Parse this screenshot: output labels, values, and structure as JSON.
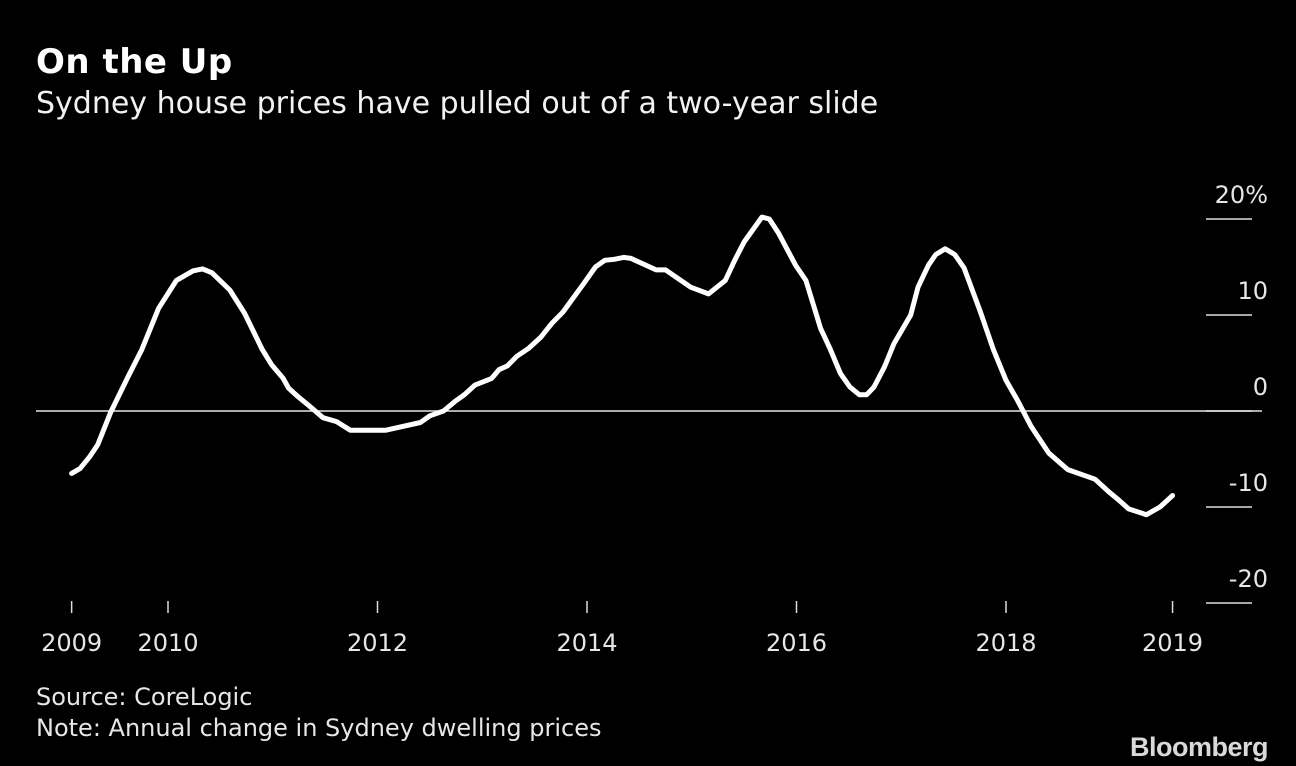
{
  "chart_data": {
    "type": "line",
    "title": "On the Up",
    "subtitle": "Sydney house prices have pulled out of a two-year slide",
    "source": "Source: CoreLogic",
    "note": "Note: Annual change in Sydney dwelling prices",
    "logo": "Bloomberg",
    "ylim": [
      -20,
      20
    ],
    "grid": false,
    "y_ticks": [
      {
        "value": 20,
        "label": "20%"
      },
      {
        "value": 10,
        "label": "10"
      },
      {
        "value": 0,
        "label": "0"
      },
      {
        "value": -10,
        "label": "-10"
      },
      {
        "value": -20,
        "label": "-20"
      }
    ],
    "x_ticks": [
      {
        "value": 2009.08,
        "label": "2009"
      },
      {
        "value": 2010,
        "label": "2010"
      },
      {
        "value": 2012,
        "label": "2012"
      },
      {
        "value": 2014,
        "label": "2014"
      },
      {
        "value": 2016,
        "label": "2016"
      },
      {
        "value": 2018,
        "label": "2018"
      },
      {
        "value": 2019.59,
        "label": "2019"
      }
    ],
    "zero_line": true,
    "line_color": "#ffffff",
    "x": [
      2009.08,
      2009.16,
      2009.25,
      2009.33,
      2009.45,
      2009.62,
      2009.75,
      2009.91,
      2010.08,
      2010.24,
      2010.33,
      2010.42,
      2010.59,
      2010.73,
      2010.9,
      2010.99,
      2011.1,
      2011.15,
      2011.24,
      2011.34,
      2011.48,
      2011.61,
      2011.74,
      2012.08,
      2012.41,
      2012.5,
      2012.63,
      2012.74,
      2012.83,
      2012.93,
      2013.09,
      2013.16,
      2013.24,
      2013.33,
      2013.44,
      2013.56,
      2013.67,
      2013.77,
      2013.97,
      2014.08,
      2014.17,
      2014.26,
      2014.35,
      2014.42,
      2014.66,
      2014.75,
      2014.99,
      2015.16,
      2015.32,
      2015.41,
      2015.5,
      2015.67,
      2015.74,
      2015.83,
      2015.99,
      2016.09,
      2016.23,
      2016.32,
      2016.42,
      2016.51,
      2016.6,
      2016.67,
      2016.74,
      2016.84,
      2016.93,
      2017.09,
      2017.16,
      2017.26,
      2017.33,
      2017.42,
      2017.51,
      2017.6,
      2017.75,
      2017.88,
      2018.0,
      2018.11,
      2018.24,
      2018.41,
      2018.59,
      2018.85,
      2018.99,
      2019.08,
      2019.17,
      2019.34,
      2019.47,
      2019.59
    ],
    "y": [
      -6.5,
      -6.0,
      -4.8,
      -3.5,
      -0.2,
      3.6,
      6.4,
      10.7,
      13.6,
      14.6,
      14.8,
      14.4,
      12.6,
      10.2,
      6.4,
      4.8,
      3.4,
      2.4,
      1.5,
      0.6,
      -0.7,
      -1.1,
      -2.0,
      -2.0,
      -1.2,
      -0.5,
      0.0,
      1.0,
      1.7,
      2.7,
      3.4,
      4.3,
      4.7,
      5.7,
      6.5,
      7.7,
      9.2,
      10.3,
      13.3,
      15.0,
      15.7,
      15.8,
      16.0,
      15.9,
      14.7,
      14.7,
      12.9,
      12.2,
      13.6,
      15.7,
      17.6,
      20.2,
      20.0,
      18.5,
      15.2,
      13.6,
      8.6,
      6.5,
      3.9,
      2.5,
      1.7,
      1.7,
      2.5,
      4.6,
      7.0,
      10.0,
      12.9,
      15.2,
      16.3,
      16.9,
      16.3,
      14.9,
      10.5,
      6.4,
      3.2,
      1.1,
      -1.6,
      -4.4,
      -6.1,
      -7.1,
      -8.5,
      -9.3,
      -10.2,
      -10.8,
      -10.0,
      -8.8
    ]
  }
}
